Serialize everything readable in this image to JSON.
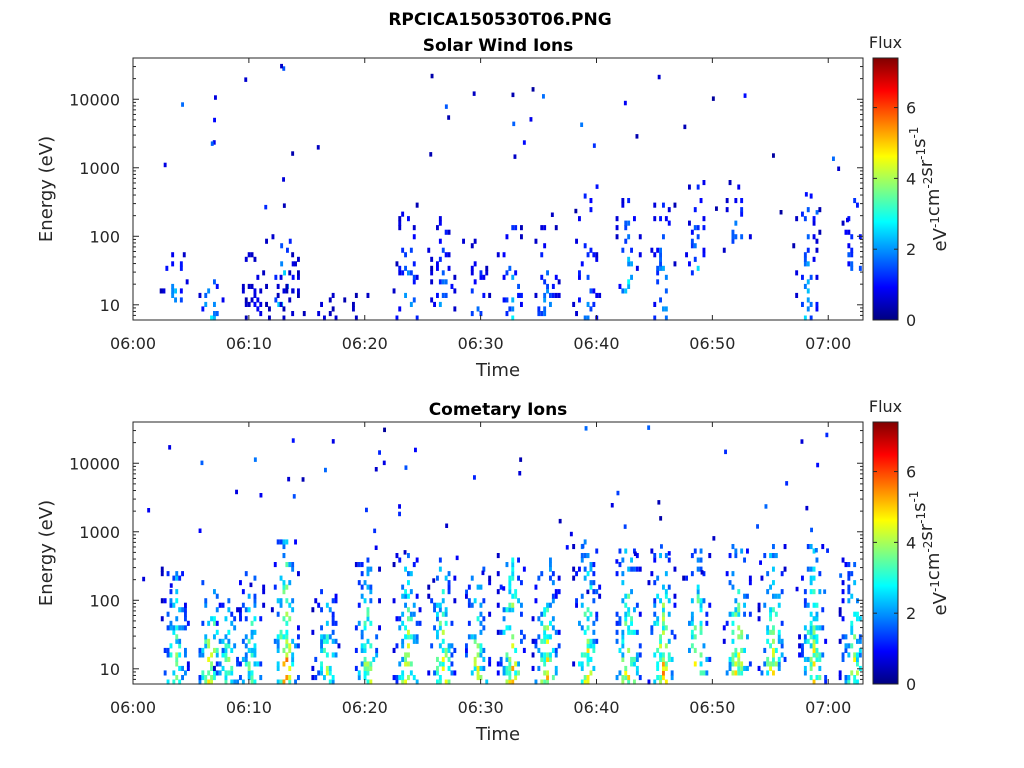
{
  "figure_title": "RPCICA150530T06.PNG",
  "chart_data": [
    {
      "type": "heatmap",
      "title": "Solar Wind Ions",
      "xlabel": "Time",
      "ylabel": "Energy (eV)",
      "x_ticks": [
        "06:00",
        "06:10",
        "06:20",
        "06:30",
        "06:40",
        "06:50",
        "07:00"
      ],
      "x_range_minutes": [
        0,
        63
      ],
      "y_scale": "log",
      "y_ticks": [
        "10",
        "100",
        "1000",
        "10000"
      ],
      "ylim": [
        6,
        40000
      ],
      "colorbar": {
        "label": "Flux",
        "unit_label": "eV-1cm-2sr-1s-1",
        "ticks": [
          "0",
          "2",
          "4",
          "6"
        ],
        "range": [
          0,
          7.4
        ],
        "colormap": "jet"
      },
      "bursts": [
        {
          "t": 3.5,
          "emin": 10,
          "emax": 60,
          "fmax": 3.2
        },
        {
          "t": 6.6,
          "emin": 6,
          "emax": 30,
          "fmax": 3.6
        },
        {
          "t": 10.6,
          "emin": 6,
          "emax": 100,
          "fmax": 1.2
        },
        {
          "t": 12.9,
          "emin": 6,
          "emax": 100,
          "fmax": 4.0
        },
        {
          "t": 13.6,
          "emin": 6,
          "emax": 60,
          "fmax": 1.0
        },
        {
          "t": 16.6,
          "emin": 6,
          "emax": 15,
          "fmax": 0.8
        },
        {
          "t": 19.1,
          "emin": 6,
          "emax": 15,
          "fmax": 0.8
        },
        {
          "t": 23.6,
          "emin": 6,
          "emax": 300,
          "fmax": 2.8
        },
        {
          "t": 26.6,
          "emin": 8,
          "emax": 200,
          "fmax": 2.6
        },
        {
          "t": 29.6,
          "emin": 6,
          "emax": 100,
          "fmax": 2.4
        },
        {
          "t": 32.6,
          "emin": 6,
          "emax": 200,
          "fmax": 3.0
        },
        {
          "t": 35.6,
          "emin": 6,
          "emax": 150,
          "fmax": 2.8
        },
        {
          "t": 39.1,
          "emin": 6,
          "emax": 500,
          "fmax": 2.8
        },
        {
          "t": 42.6,
          "emin": 15,
          "emax": 400,
          "fmax": 3.2
        },
        {
          "t": 45.6,
          "emin": 6,
          "emax": 300,
          "fmax": 3.0
        },
        {
          "t": 48.6,
          "emin": 25,
          "emax": 700,
          "fmax": 2.8
        },
        {
          "t": 52.1,
          "emin": 60,
          "emax": 700,
          "fmax": 2.8
        },
        {
          "t": 58.1,
          "emin": 6,
          "emax": 700,
          "fmax": 3.0
        },
        {
          "t": 62.1,
          "emin": 30,
          "emax": 500,
          "fmax": 2.6
        }
      ]
    },
    {
      "type": "heatmap",
      "title": "Cometary Ions",
      "xlabel": "Time",
      "ylabel": "Energy (eV)",
      "x_ticks": [
        "06:00",
        "06:10",
        "06:20",
        "06:30",
        "06:40",
        "06:50",
        "07:00"
      ],
      "x_range_minutes": [
        0,
        63
      ],
      "y_scale": "log",
      "y_ticks": [
        "10",
        "100",
        "1000",
        "10000"
      ],
      "ylim": [
        6,
        40000
      ],
      "colorbar": {
        "label": "Flux",
        "unit_label": "eV-1cm-2sr-1s-1",
        "ticks": [
          "0",
          "2",
          "4",
          "6"
        ],
        "range": [
          0,
          7.4
        ],
        "colormap": "jet"
      },
      "bursts": [
        {
          "t": 3.6,
          "emin": 6,
          "emax": 300,
          "fmax": 5.0
        },
        {
          "t": 6.6,
          "emin": 6,
          "emax": 200,
          "fmax": 6.5
        },
        {
          "t": 8.1,
          "emin": 6,
          "emax": 100,
          "fmax": 5.0
        },
        {
          "t": 10.1,
          "emin": 6,
          "emax": 300,
          "fmax": 5.0
        },
        {
          "t": 13.1,
          "emin": 6,
          "emax": 800,
          "fmax": 6.5
        },
        {
          "t": 16.6,
          "emin": 6,
          "emax": 150,
          "fmax": 5.0
        },
        {
          "t": 20.1,
          "emin": 6,
          "emax": 400,
          "fmax": 5.5
        },
        {
          "t": 23.6,
          "emin": 6,
          "emax": 500,
          "fmax": 5.8
        },
        {
          "t": 26.6,
          "emin": 6,
          "emax": 400,
          "fmax": 5.8
        },
        {
          "t": 29.6,
          "emin": 6,
          "emax": 300,
          "fmax": 5.5
        },
        {
          "t": 32.6,
          "emin": 6,
          "emax": 500,
          "fmax": 6.2
        },
        {
          "t": 35.6,
          "emin": 6,
          "emax": 400,
          "fmax": 5.8
        },
        {
          "t": 39.1,
          "emin": 6,
          "emax": 800,
          "fmax": 5.8
        },
        {
          "t": 42.6,
          "emin": 6,
          "emax": 600,
          "fmax": 6.0
        },
        {
          "t": 45.6,
          "emin": 6,
          "emax": 600,
          "fmax": 6.2
        },
        {
          "t": 48.6,
          "emin": 8,
          "emax": 600,
          "fmax": 5.8
        },
        {
          "t": 52.1,
          "emin": 8,
          "emax": 800,
          "fmax": 5.8
        },
        {
          "t": 55.1,
          "emin": 8,
          "emax": 700,
          "fmax": 5.5
        },
        {
          "t": 58.6,
          "emin": 6,
          "emax": 700,
          "fmax": 5.8
        },
        {
          "t": 62.1,
          "emin": 6,
          "emax": 400,
          "fmax": 5.5
        }
      ]
    }
  ]
}
